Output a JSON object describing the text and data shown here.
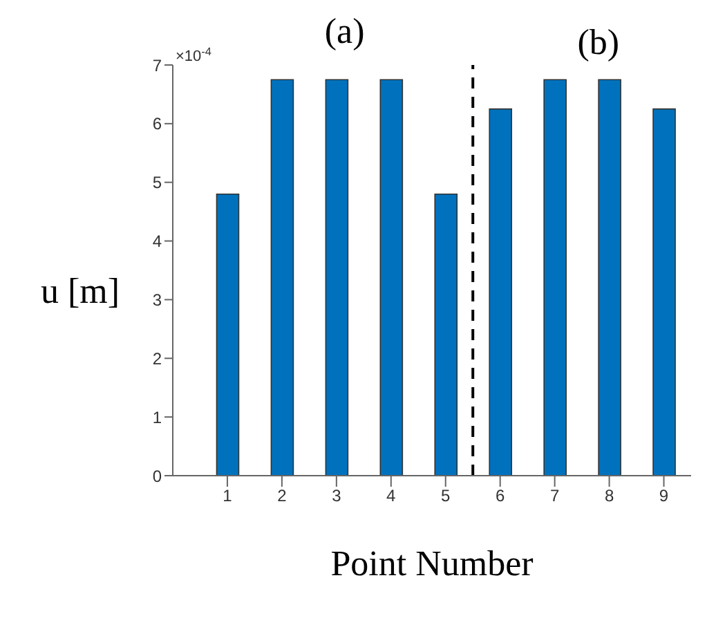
{
  "chart_data": {
    "type": "bar",
    "xlabel": "Point Number",
    "ylabel": "u [m]",
    "annotations": [
      "(a)",
      "(b)",
      "×10$^{-4}$"
    ],
    "x": [
      1,
      2,
      3,
      4,
      5,
      6,
      7,
      8,
      9
    ],
    "values": [
      4.8,
      6.75,
      6.75,
      6.75,
      4.8,
      6.25,
      6.75,
      6.75,
      6.25
    ],
    "color": "#0072bd",
    "xlim": [
      0,
      9.5
    ],
    "xticks": [
      1,
      2,
      3,
      4,
      5,
      6,
      7,
      8,
      9
    ],
    "ylim": [
      0,
      7
    ],
    "yticks": [
      0,
      1,
      2,
      3,
      4,
      5,
      6,
      7
    ],
    "ref_lines": [
      {
        "axis": "x",
        "value": 5.5,
        "color": "#000000",
        "line_style": "dashed"
      }
    ],
    "grid": false,
    "legend": false
  }
}
